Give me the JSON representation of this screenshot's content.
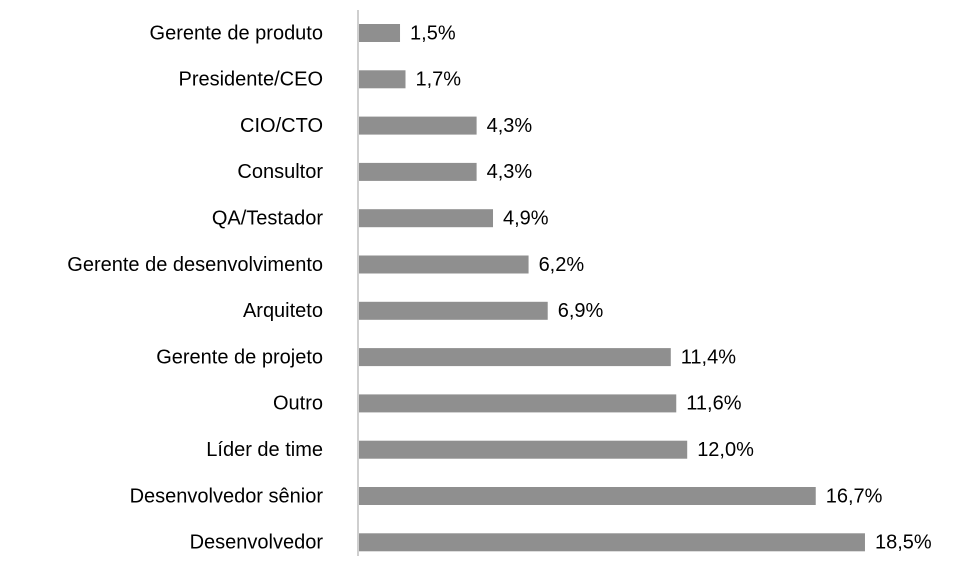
{
  "chart_data": {
    "type": "bar",
    "orientation": "horizontal",
    "categories": [
      "Gerente de produto",
      "Presidente/CEO",
      "CIO/CTO",
      "Consultor",
      "QA/Testador",
      "Gerente de desenvolvimento",
      "Arquiteto",
      "Gerente de projeto",
      "Outro",
      "Líder de time",
      "Desenvolvedor sênior",
      "Desenvolvedor"
    ],
    "values": [
      1.5,
      1.7,
      4.3,
      4.3,
      4.9,
      6.2,
      6.9,
      11.4,
      11.6,
      12.0,
      16.7,
      18.5
    ],
    "value_labels": [
      "1,5%",
      "1,7%",
      "4,3%",
      "4,3%",
      "4,9%",
      "6,2%",
      "6,9%",
      "11,4%",
      "11,6%",
      "12,0%",
      "16,7%",
      "18,5%"
    ],
    "color": "#8f8f8f",
    "xlim": [
      0,
      20
    ]
  }
}
